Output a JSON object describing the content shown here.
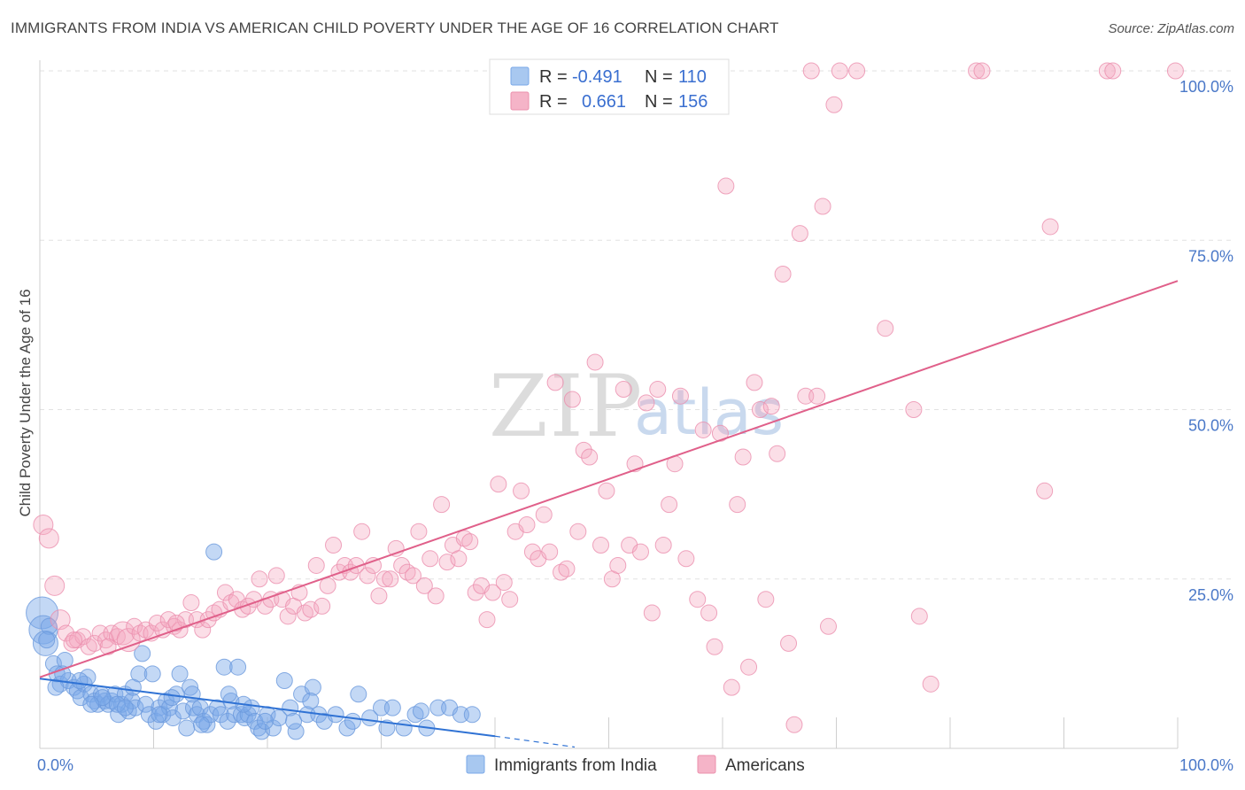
{
  "title": "IMMIGRANTS FROM INDIA VS AMERICAN CHILD POVERTY UNDER THE AGE OF 16 CORRELATION CHART",
  "source": "Source: ZipAtlas.com",
  "watermark": {
    "zip": "ZIP",
    "atlas": "atlas"
  },
  "legend": {
    "rows": [
      {
        "r_label": "R =",
        "r_value": "-0.491",
        "n_label": "N =",
        "n_value": "110",
        "color": "#a8c8f0"
      },
      {
        "r_label": "R =",
        "r_value": "0.661",
        "n_label": "N =",
        "n_value": "156",
        "color": "#f5b4c8"
      }
    ]
  },
  "chart_data": {
    "type": "scatter",
    "title": "IMMIGRANTS FROM INDIA VS AMERICAN CHILD POVERTY UNDER THE AGE OF 16 CORRELATION CHART",
    "xlabel": "",
    "ylabel": "Child Poverty Under the Age of 16",
    "xlim": [
      0,
      100
    ],
    "ylim": [
      0,
      100
    ],
    "x_tick_labels": [
      "0.0%",
      "100.0%"
    ],
    "y_tick_labels": [
      {
        "value": 25,
        "label": "25.0%"
      },
      {
        "value": 50,
        "label": "50.0%"
      },
      {
        "value": 75,
        "label": "75.0%"
      },
      {
        "value": 100,
        "label": "100.0%"
      }
    ],
    "grid": true,
    "legend_position": "bottom",
    "series": [
      {
        "name": "Immigrants from India",
        "color": "#7aa8e8",
        "line_color": "#2f72d4",
        "r": -0.491,
        "n": 110,
        "trend": {
          "x0": 0,
          "y0": 10.3,
          "x1": 40,
          "y1": 1.8,
          "dashed_to_x": 47,
          "dashed_to_y": 0.2
        },
        "points": [
          [
            0.2,
            20
          ],
          [
            0.3,
            17.5
          ],
          [
            0.5,
            15.5
          ],
          [
            0.8,
            18
          ],
          [
            1.2,
            12.5
          ],
          [
            1.5,
            11
          ],
          [
            1.8,
            9.5
          ],
          [
            2.2,
            13
          ],
          [
            2.5,
            10
          ],
          [
            3,
            9
          ],
          [
            3.3,
            8.5
          ],
          [
            3.6,
            7.5
          ],
          [
            3.9,
            9.5
          ],
          [
            4.2,
            10.5
          ],
          [
            4.5,
            8
          ],
          [
            4.8,
            7
          ],
          [
            5.1,
            6.5
          ],
          [
            5.4,
            8
          ],
          [
            5.7,
            7
          ],
          [
            6,
            6.5
          ],
          [
            6.3,
            7
          ],
          [
            6.6,
            8
          ],
          [
            6.9,
            5
          ],
          [
            7.2,
            6.5
          ],
          [
            7.5,
            8
          ],
          [
            7.8,
            5.5
          ],
          [
            8.1,
            7
          ],
          [
            8.4,
            6
          ],
          [
            8.7,
            11
          ],
          [
            9,
            14
          ],
          [
            9.3,
            6.5
          ],
          [
            9.6,
            5
          ],
          [
            9.9,
            11
          ],
          [
            10.2,
            4
          ],
          [
            10.5,
            6
          ],
          [
            10.8,
            5
          ],
          [
            11.1,
            7
          ],
          [
            11.4,
            6
          ],
          [
            11.7,
            4.5
          ],
          [
            12,
            8
          ],
          [
            12.3,
            11
          ],
          [
            12.6,
            5.5
          ],
          [
            12.9,
            3
          ],
          [
            13.2,
            9
          ],
          [
            13.5,
            6
          ],
          [
            13.8,
            5
          ],
          [
            14.1,
            6
          ],
          [
            14.4,
            4
          ],
          [
            14.7,
            3.5
          ],
          [
            15,
            5
          ],
          [
            15.3,
            29
          ],
          [
            15.6,
            6
          ],
          [
            15.9,
            5
          ],
          [
            16.2,
            12
          ],
          [
            16.5,
            4
          ],
          [
            16.8,
            7
          ],
          [
            17.1,
            5
          ],
          [
            17.4,
            12
          ],
          [
            17.7,
            5
          ],
          [
            18,
            4.5
          ],
          [
            18.3,
            5
          ],
          [
            18.6,
            6
          ],
          [
            18.9,
            4
          ],
          [
            19.2,
            3
          ],
          [
            19.5,
            2.5
          ],
          [
            20,
            5
          ],
          [
            20.5,
            3
          ],
          [
            21,
            4.5
          ],
          [
            21.5,
            10
          ],
          [
            22,
            6
          ],
          [
            22.5,
            2.5
          ],
          [
            23,
            8
          ],
          [
            23.5,
            5
          ],
          [
            24,
            9
          ],
          [
            24.5,
            5
          ],
          [
            25,
            4
          ],
          [
            26,
            5
          ],
          [
            27,
            3
          ],
          [
            28,
            8
          ],
          [
            29,
            4.5
          ],
          [
            30,
            6
          ],
          [
            30.5,
            3
          ],
          [
            31,
            6
          ],
          [
            32,
            3
          ],
          [
            33,
            5
          ],
          [
            34,
            3
          ],
          [
            35,
            6
          ],
          [
            36,
            6
          ],
          [
            37,
            5
          ],
          [
            38,
            5
          ],
          [
            2,
            11
          ],
          [
            3.5,
            10
          ],
          [
            6.8,
            6.5
          ],
          [
            7.5,
            6
          ],
          [
            10.5,
            5
          ],
          [
            14.2,
            3.5
          ],
          [
            16.6,
            8
          ],
          [
            19.8,
            4
          ],
          [
            23.8,
            7
          ],
          [
            0.6,
            16
          ],
          [
            1.4,
            9
          ],
          [
            5.5,
            7.5
          ],
          [
            8.2,
            9
          ],
          [
            11.6,
            7.5
          ],
          [
            13.4,
            8
          ],
          [
            17.9,
            6.5
          ],
          [
            22.3,
            4
          ],
          [
            27.5,
            4
          ],
          [
            33.5,
            5.5
          ],
          [
            4.5,
            6.5
          ]
        ]
      },
      {
        "name": "Americans",
        "color": "#f5a8c0",
        "line_color": "#e0608a",
        "r": 0.661,
        "n": 156,
        "trend": {
          "x0": 0,
          "y0": 10.5,
          "x1": 100,
          "y1": 69
        },
        "points": [
          [
            0.3,
            33
          ],
          [
            0.8,
            31
          ],
          [
            1.3,
            24
          ],
          [
            1.8,
            19
          ],
          [
            2.3,
            17
          ],
          [
            2.8,
            15.5
          ],
          [
            3.3,
            16
          ],
          [
            3.8,
            16.5
          ],
          [
            4.3,
            15
          ],
          [
            4.8,
            15.5
          ],
          [
            5.3,
            17
          ],
          [
            5.8,
            16
          ],
          [
            6.3,
            17
          ],
          [
            6.8,
            16.5
          ],
          [
            7.3,
            17
          ],
          [
            7.8,
            16
          ],
          [
            8.3,
            18
          ],
          [
            8.8,
            17
          ],
          [
            9.3,
            17.5
          ],
          [
            9.8,
            17
          ],
          [
            10.3,
            18.5
          ],
          [
            10.8,
            17.5
          ],
          [
            11.3,
            19
          ],
          [
            11.8,
            18
          ],
          [
            12.3,
            17.5
          ],
          [
            12.8,
            19
          ],
          [
            13.3,
            21.5
          ],
          [
            13.8,
            19
          ],
          [
            14.3,
            17.5
          ],
          [
            14.8,
            19
          ],
          [
            15.3,
            20
          ],
          [
            15.8,
            20.5
          ],
          [
            16.3,
            23
          ],
          [
            16.8,
            21.5
          ],
          [
            17.3,
            22
          ],
          [
            17.8,
            20.5
          ],
          [
            18.3,
            21
          ],
          [
            18.8,
            22
          ],
          [
            19.3,
            25
          ],
          [
            19.8,
            21
          ],
          [
            20.3,
            22
          ],
          [
            20.8,
            25.5
          ],
          [
            21.3,
            22
          ],
          [
            21.8,
            19.5
          ],
          [
            22.3,
            21
          ],
          [
            22.8,
            23
          ],
          [
            23.3,
            20
          ],
          [
            23.8,
            20.5
          ],
          [
            24.3,
            27
          ],
          [
            24.8,
            21
          ],
          [
            25.3,
            24
          ],
          [
            25.8,
            30
          ],
          [
            26.3,
            26
          ],
          [
            26.8,
            27
          ],
          [
            27.3,
            26
          ],
          [
            27.8,
            27
          ],
          [
            28.3,
            32
          ],
          [
            28.8,
            25.5
          ],
          [
            29.3,
            27
          ],
          [
            29.8,
            22.5
          ],
          [
            30.3,
            25
          ],
          [
            30.8,
            25
          ],
          [
            31.3,
            29.5
          ],
          [
            31.8,
            27
          ],
          [
            32.3,
            26
          ],
          [
            32.8,
            25.5
          ],
          [
            33.3,
            32
          ],
          [
            33.8,
            24
          ],
          [
            34.3,
            28
          ],
          [
            34.8,
            22.5
          ],
          [
            35.3,
            36
          ],
          [
            35.8,
            27.5
          ],
          [
            36.3,
            30
          ],
          [
            36.8,
            28
          ],
          [
            37.3,
            31
          ],
          [
            37.8,
            30.5
          ],
          [
            38.3,
            23
          ],
          [
            38.8,
            24
          ],
          [
            39.3,
            19
          ],
          [
            39.8,
            23
          ],
          [
            40.3,
            39
          ],
          [
            40.8,
            24.5
          ],
          [
            41.3,
            22
          ],
          [
            41.8,
            32
          ],
          [
            42.3,
            38
          ],
          [
            42.8,
            33
          ],
          [
            43.3,
            29
          ],
          [
            43.8,
            28
          ],
          [
            44.3,
            34.5
          ],
          [
            44.8,
            29
          ],
          [
            45.3,
            54
          ],
          [
            45.8,
            26
          ],
          [
            46.3,
            26.5
          ],
          [
            46.8,
            51.5
          ],
          [
            47.3,
            32
          ],
          [
            47.8,
            44
          ],
          [
            48.3,
            43
          ],
          [
            48.8,
            57
          ],
          [
            49.3,
            30
          ],
          [
            49.8,
            38
          ],
          [
            50.3,
            25
          ],
          [
            50.8,
            27
          ],
          [
            51.3,
            53
          ],
          [
            51.8,
            30
          ],
          [
            52.3,
            42
          ],
          [
            52.8,
            29
          ],
          [
            53.3,
            51
          ],
          [
            53.8,
            20
          ],
          [
            54.3,
            53
          ],
          [
            54.8,
            30
          ],
          [
            55.3,
            36
          ],
          [
            55.8,
            42
          ],
          [
            56.3,
            52
          ],
          [
            56.8,
            28
          ],
          [
            57.3,
            95
          ],
          [
            57.8,
            22
          ],
          [
            58.3,
            47
          ],
          [
            58.8,
            20
          ],
          [
            59.3,
            15
          ],
          [
            59.8,
            46.5
          ],
          [
            60.3,
            83
          ],
          [
            60.8,
            9
          ],
          [
            61.3,
            36
          ],
          [
            61.8,
            43
          ],
          [
            62.3,
            12
          ],
          [
            62.8,
            54
          ],
          [
            63.3,
            50
          ],
          [
            63.8,
            22
          ],
          [
            64.3,
            50.5
          ],
          [
            64.8,
            43.5
          ],
          [
            65.3,
            70
          ],
          [
            65.8,
            15.5
          ],
          [
            66.3,
            3.5
          ],
          [
            66.8,
            76
          ],
          [
            67.3,
            52
          ],
          [
            67.8,
            100
          ],
          [
            68.3,
            52
          ],
          [
            68.8,
            80
          ],
          [
            69.3,
            18
          ],
          [
            69.8,
            95
          ],
          [
            70.3,
            100
          ],
          [
            71.8,
            100
          ],
          [
            74.3,
            62
          ],
          [
            76.8,
            50
          ],
          [
            77.3,
            19.5
          ],
          [
            78.3,
            9.5
          ],
          [
            82.3,
            100
          ],
          [
            82.8,
            100
          ],
          [
            88.3,
            38
          ],
          [
            88.8,
            77
          ],
          [
            93.8,
            100
          ],
          [
            94.3,
            100
          ],
          [
            99.8,
            100
          ],
          [
            3,
            16
          ],
          [
            6,
            15
          ],
          [
            12,
            18.5
          ]
        ]
      }
    ]
  },
  "bottom_legend": [
    {
      "label": "Immigrants from India",
      "color": "#a8c8f0"
    },
    {
      "label": "Americans",
      "color": "#f5b4c8"
    }
  ]
}
